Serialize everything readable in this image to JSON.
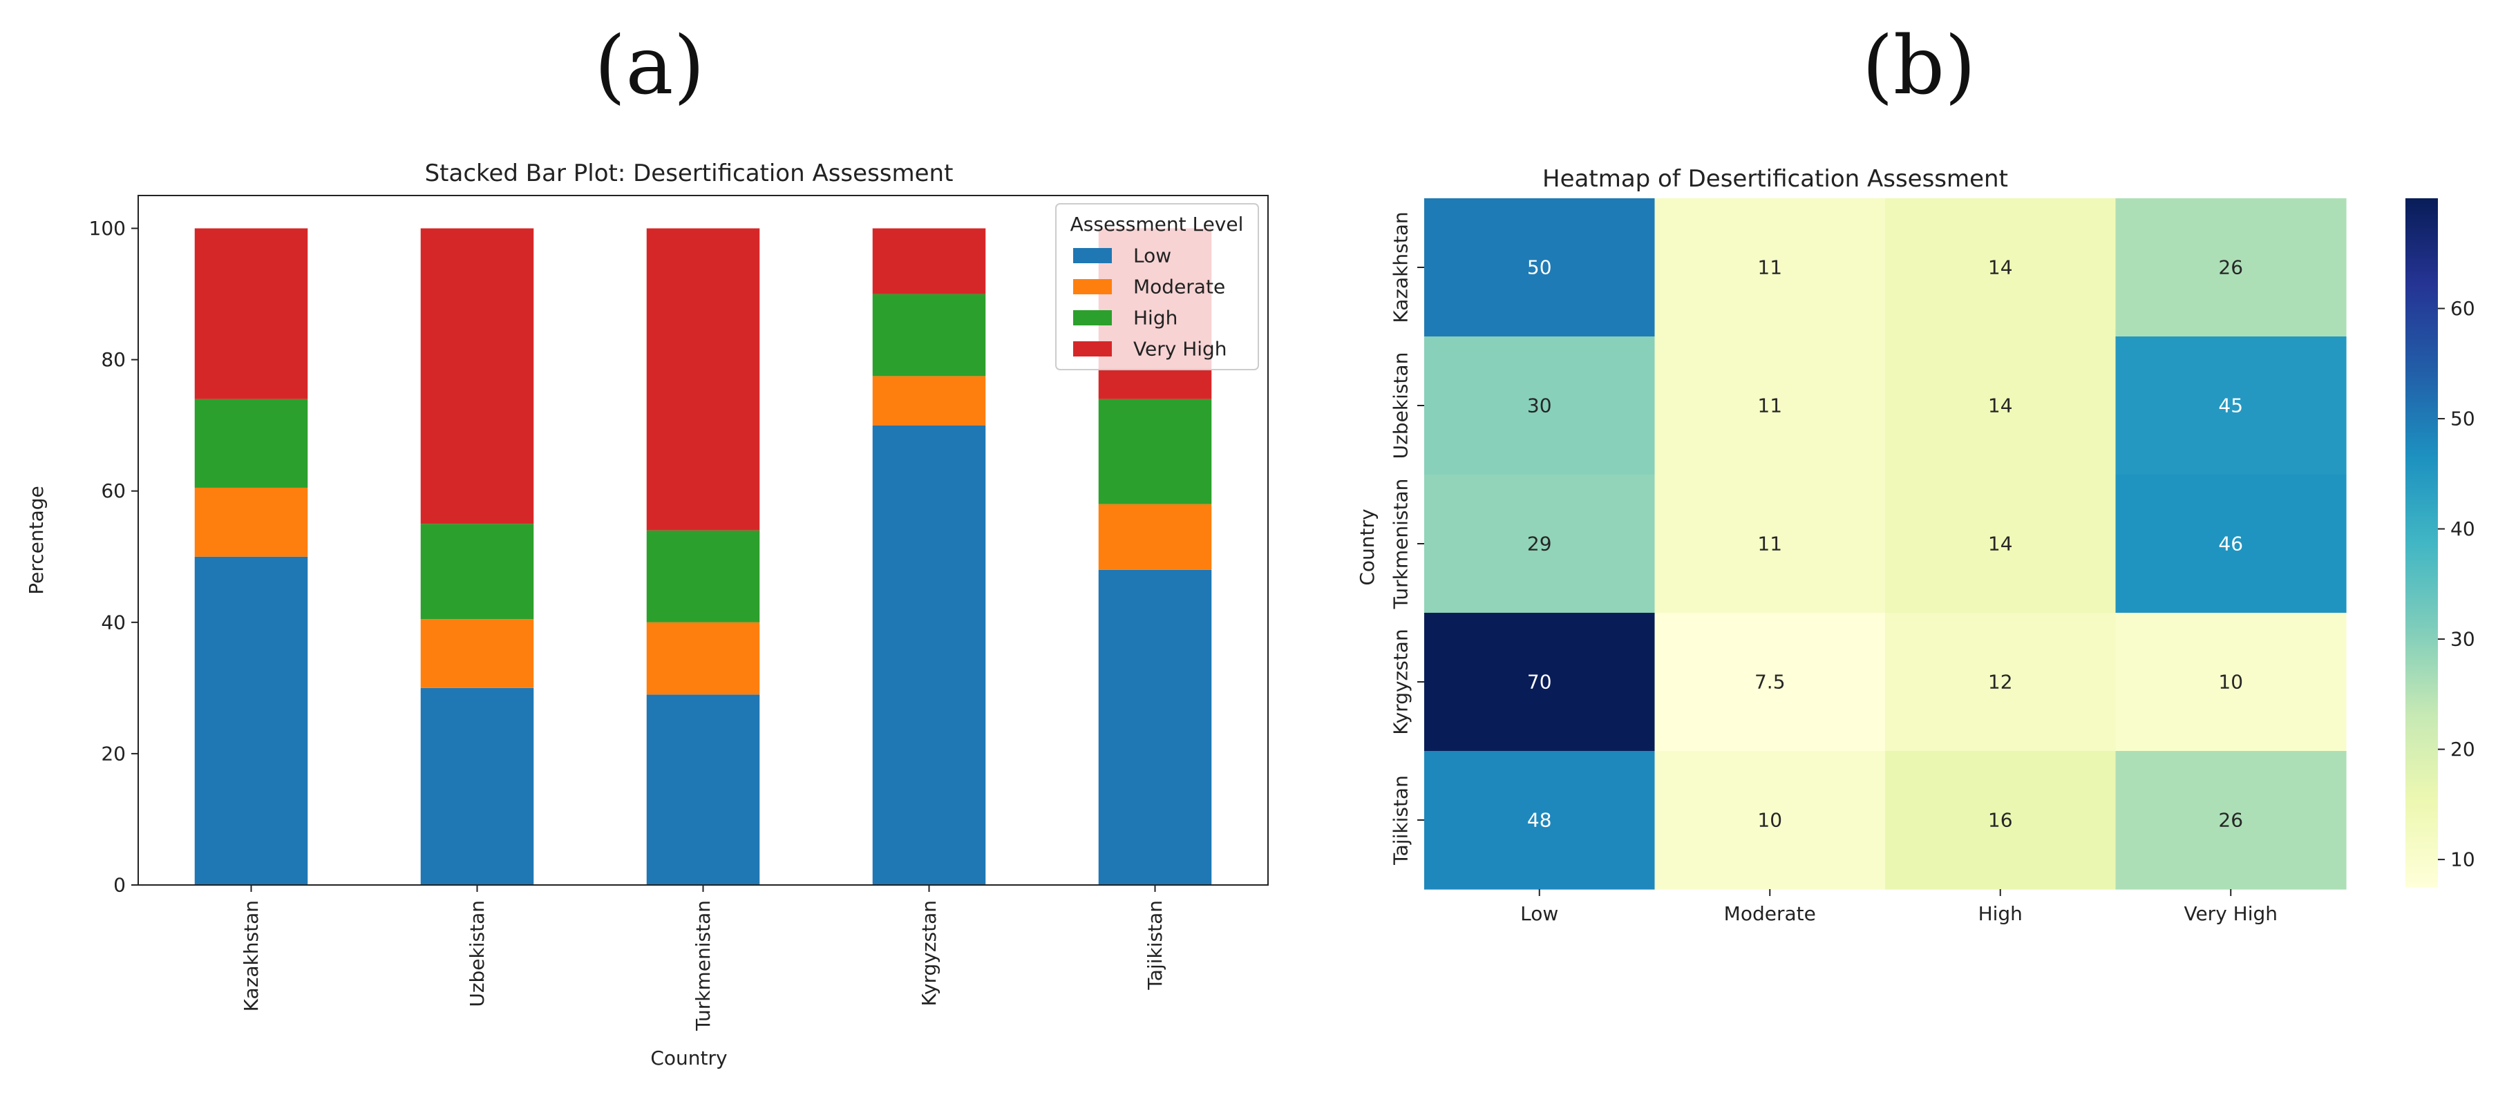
{
  "panels": {
    "a": {
      "label": "(a)",
      "chart_data": {
        "type": "bar",
        "stacked": true,
        "title": "Stacked Bar Plot: Desertification Assessment",
        "xlabel": "Country",
        "ylabel": "Percentage",
        "ylim": [
          0,
          105
        ],
        "yticks": [
          0,
          20,
          40,
          60,
          80,
          100
        ],
        "categories": [
          "Kazakhstan",
          "Uzbekistan",
          "Turkmenistan",
          "Kyrgyzstan",
          "Tajikistan"
        ],
        "series": [
          {
            "name": "Low",
            "color": "#1f77b4",
            "values": [
              50,
              30,
              29,
              70,
              48
            ]
          },
          {
            "name": "Moderate",
            "color": "#ff7f0e",
            "values": [
              10.5,
              10.5,
              11,
              7.5,
              10
            ]
          },
          {
            "name": "High",
            "color": "#2ca02c",
            "values": [
              13.5,
              14.5,
              14,
              12.5,
              16
            ]
          },
          {
            "name": "Very High",
            "color": "#d62728",
            "values": [
              26,
              45,
              46,
              10,
              26
            ]
          }
        ],
        "legend": {
          "title": "Assessment Level",
          "placement": "top-right"
        },
        "grid": false
      }
    },
    "b": {
      "label": "(b)",
      "chart_data": {
        "type": "heatmap",
        "title": "Heatmap of Desertification Assessment",
        "ylabel": "Country",
        "xlabel": "",
        "rows": [
          "Kazakhstan",
          "Uzbekistan",
          "Turkmenistan",
          "Kyrgyzstan",
          "Tajikistan"
        ],
        "columns": [
          "Low",
          "Moderate",
          "High",
          "Very High"
        ],
        "values": [
          [
            50,
            11,
            14,
            26
          ],
          [
            30,
            11,
            14,
            45
          ],
          [
            29,
            11,
            14,
            46
          ],
          [
            70,
            7.5,
            12,
            10
          ],
          [
            48,
            10,
            16,
            26
          ]
        ],
        "cell_labels": [
          [
            "50",
            "11",
            "14",
            "26"
          ],
          [
            "30",
            "11",
            "14",
            "45"
          ],
          [
            "29",
            "11",
            "14",
            "46"
          ],
          [
            "70",
            "7.5",
            "12",
            "10"
          ],
          [
            "48",
            "10",
            "16",
            "26"
          ]
        ],
        "colormap": "YlGnBu",
        "colorbar": {
          "range": [
            7.5,
            70
          ],
          "ticks": [
            10,
            20,
            30,
            40,
            50,
            60
          ]
        }
      }
    }
  }
}
